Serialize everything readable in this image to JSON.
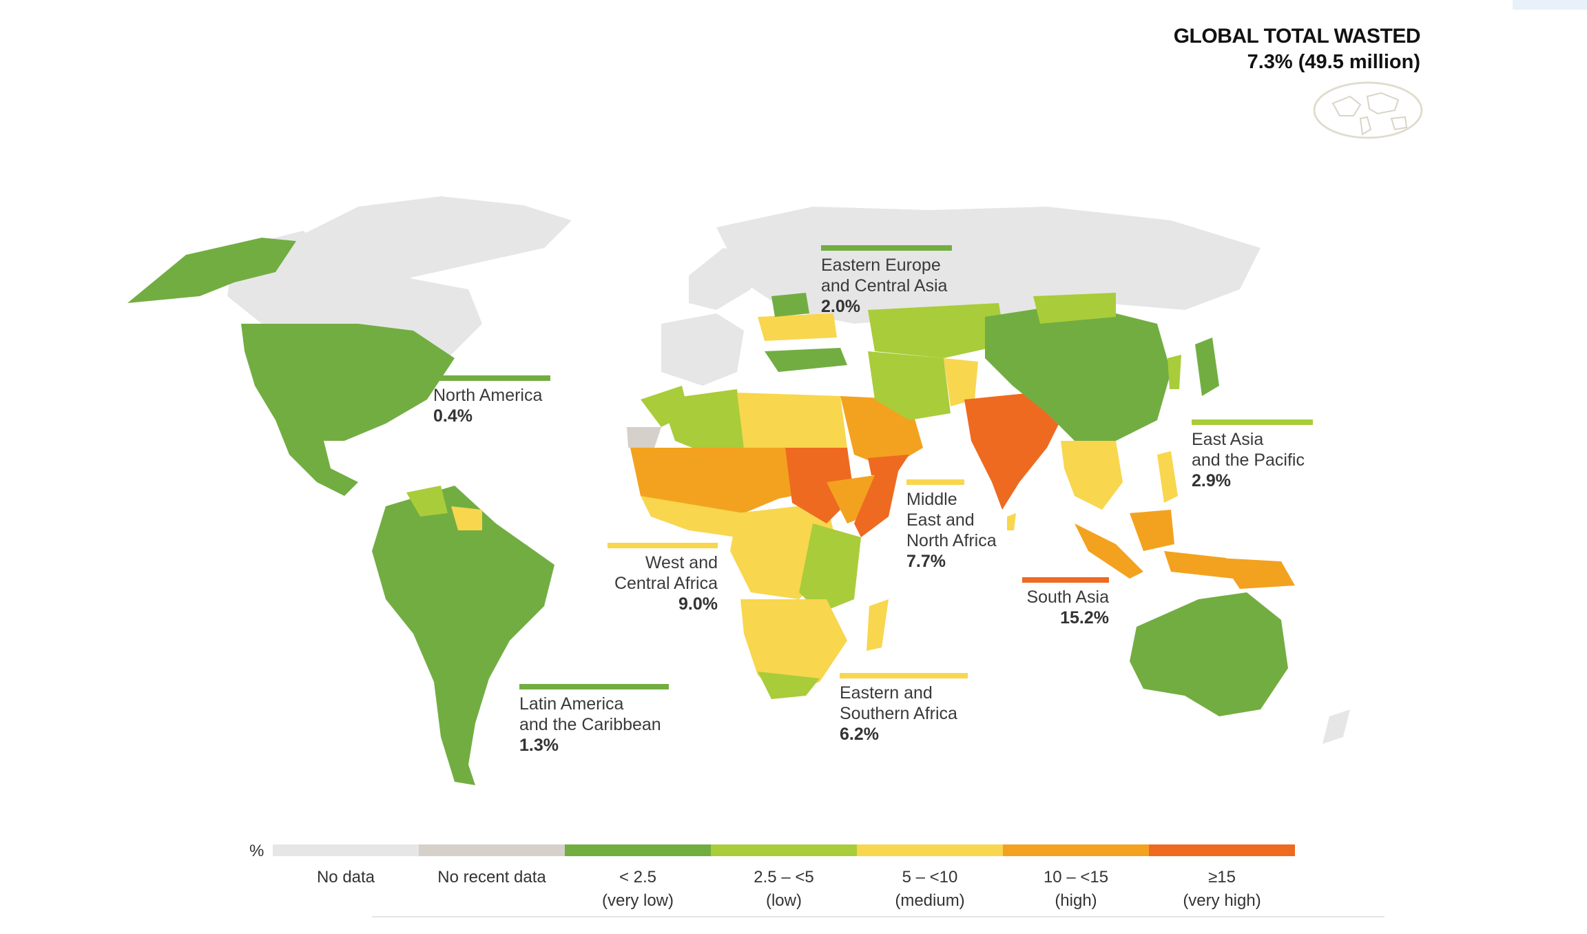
{
  "global": {
    "title": "GLOBAL TOTAL WASTED",
    "value": "7.3% (49.5 million)",
    "icon": "world-map-icon"
  },
  "colors": {
    "no_data": "#e6e6e6",
    "no_recent_data": "#d6d0ca",
    "very_low": "#72ad42",
    "low": "#a9cc3a",
    "medium": "#f8d64e",
    "high": "#f3a21f",
    "very_high": "#ee6a21"
  },
  "regions": [
    {
      "name": "North America",
      "value": "0.4%",
      "category": "very_low"
    },
    {
      "name": "Latin America\nand the Caribbean",
      "value": "1.3%",
      "category": "very_low"
    },
    {
      "name": "Eastern Europe\nand Central Asia",
      "value": "2.0%",
      "category": "very_low"
    },
    {
      "name": "West and\nCentral Africa",
      "value": "9.0%",
      "category": "medium"
    },
    {
      "name": "Middle\nEast and\nNorth Africa",
      "value": "7.7%",
      "category": "medium"
    },
    {
      "name": "Eastern and\nSouthern Africa",
      "value": "6.2%",
      "category": "medium"
    },
    {
      "name": "South Asia",
      "value": "15.2%",
      "category": "very_high"
    },
    {
      "name": "East Asia\nand the Pacific",
      "value": "2.9%",
      "category": "low"
    }
  ],
  "legend": {
    "unit": "%",
    "items": [
      {
        "label": "No data",
        "key": "no_data"
      },
      {
        "label": "No recent data",
        "key": "no_recent_data"
      },
      {
        "label": "< 2.5\n(very low)",
        "key": "very_low"
      },
      {
        "label": "2.5 – <5\n(low)",
        "key": "low"
      },
      {
        "label": "5 – <10\n(medium)",
        "key": "medium"
      },
      {
        "label": "10 – <15\n(high)",
        "key": "high"
      },
      {
        "label": "≥15\n(very high)",
        "key": "very_high"
      }
    ]
  }
}
